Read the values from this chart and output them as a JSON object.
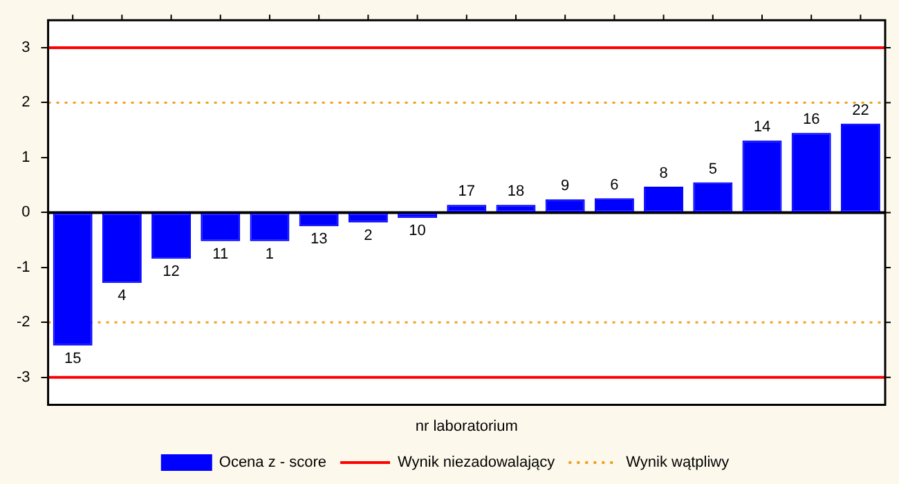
{
  "chart_data": {
    "type": "bar",
    "xlabel": "nr laboratorium",
    "categories": [
      "15",
      "4",
      "12",
      "11",
      "1",
      "13",
      "2",
      "10",
      "17",
      "18",
      "9",
      "6",
      "8",
      "5",
      "14",
      "16",
      "22"
    ],
    "series": [
      {
        "name": "Ocena z - score",
        "color": "#0000ff",
        "values": [
          -2.42,
          -1.28,
          -0.84,
          -0.52,
          -0.52,
          -0.25,
          -0.18,
          -0.1,
          0.14,
          0.14,
          0.24,
          0.26,
          0.47,
          0.55,
          1.31,
          1.45,
          1.62
        ]
      }
    ],
    "ylim": [
      -3.5,
      3.5
    ],
    "yticks": [
      -3,
      -2,
      -1,
      0,
      1,
      2,
      3
    ],
    "grid": false,
    "legend": "bottom",
    "ref_lines": [
      {
        "axis": "y",
        "value": 3,
        "label": "Wynik niezadowalający",
        "color": "#ff0000",
        "line_style": "solid"
      },
      {
        "axis": "y",
        "value": -3,
        "color": "#ff0000",
        "line_style": "solid"
      },
      {
        "axis": "y",
        "value": 2,
        "label": "Wynik wątpliwy",
        "color": "#f0a020",
        "line_style": "dotted"
      },
      {
        "axis": "y",
        "value": -2,
        "color": "#f0a020",
        "line_style": "dotted"
      }
    ]
  }
}
